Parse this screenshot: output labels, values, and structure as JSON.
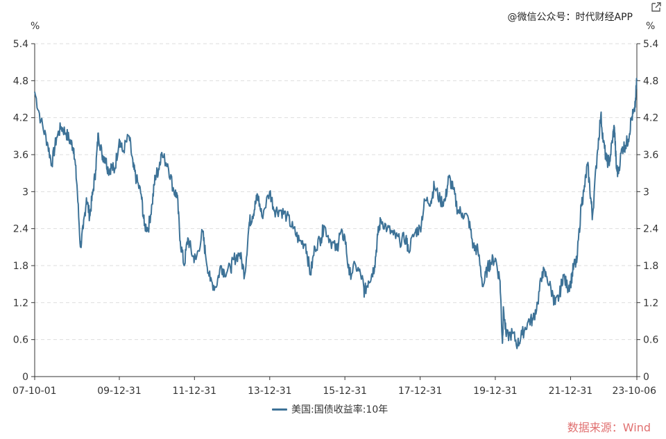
{
  "watermark": "@微信公众号：时代财经APP",
  "source_note": "数据来源：Wind",
  "colors": {
    "line": "#3d7297",
    "grid": "#dddddd",
    "axis": "#333333",
    "source": "#e07070"
  },
  "chart_data": {
    "type": "line",
    "title": "",
    "unit_left": "%",
    "unit_right": "%",
    "ylim": [
      0,
      5.4
    ],
    "yticks": [
      "0",
      "0.6",
      "1.2",
      "1.8",
      "2.4",
      "3",
      "3.6",
      "4.2",
      "4.8",
      "5.4"
    ],
    "xlim": [
      "2007-10-01",
      "2023-10-06"
    ],
    "xticks": [
      {
        "date": "2007-10-01",
        "label": "07-10-01"
      },
      {
        "date": "2009-12-31",
        "label": "09-12-31"
      },
      {
        "date": "2011-12-31",
        "label": "11-12-31"
      },
      {
        "date": "2013-12-31",
        "label": "13-12-31"
      },
      {
        "date": "2015-12-31",
        "label": "15-12-31"
      },
      {
        "date": "2017-12-31",
        "label": "17-12-31"
      },
      {
        "date": "2019-12-31",
        "label": "19-12-31"
      },
      {
        "date": "2021-12-31",
        "label": "21-12-31"
      },
      {
        "date": "2023-10-06",
        "label": "23-10-06"
      }
    ],
    "grid": true,
    "legend_position": "bottom-center",
    "series": [
      {
        "name": "美国:国债收益率:10年",
        "color": "#3d7297",
        "x": [
          "2007-10-01",
          "2007-12-01",
          "2008-02-01",
          "2008-03-15",
          "2008-05-01",
          "2008-06-15",
          "2008-08-01",
          "2008-09-15",
          "2008-10-15",
          "2008-11-15",
          "2008-12-18",
          "2009-01-15",
          "2009-02-15",
          "2009-03-18",
          "2009-04-15",
          "2009-05-15",
          "2009-06-10",
          "2009-07-15",
          "2009-08-15",
          "2009-09-15",
          "2009-10-15",
          "2009-11-15",
          "2009-12-31",
          "2010-02-01",
          "2010-04-05",
          "2010-05-15",
          "2010-06-15",
          "2010-08-01",
          "2010-08-31",
          "2010-10-08",
          "2010-11-15",
          "2010-12-15",
          "2011-01-15",
          "2011-02-08",
          "2011-04-15",
          "2011-06-15",
          "2011-07-15",
          "2011-08-15",
          "2011-09-22",
          "2011-10-27",
          "2011-12-15",
          "2012-01-15",
          "2012-03-19",
          "2012-04-15",
          "2012-06-01",
          "2012-07-24",
          "2012-09-14",
          "2012-10-15",
          "2012-12-15",
          "2013-01-15",
          "2013-03-15",
          "2013-05-02",
          "2013-06-15",
          "2013-07-15",
          "2013-08-15",
          "2013-09-05",
          "2013-10-15",
          "2013-12-31",
          "2014-02-15",
          "2014-04-15",
          "2014-06-15",
          "2014-08-15",
          "2014-10-15",
          "2014-12-15",
          "2015-01-30",
          "2015-03-15",
          "2015-05-15",
          "2015-06-10",
          "2015-08-15",
          "2015-10-15",
          "2015-11-10",
          "2015-12-31",
          "2016-02-11",
          "2016-04-15",
          "2016-06-15",
          "2016-07-08",
          "2016-08-15",
          "2016-09-15",
          "2016-10-15",
          "2016-11-15",
          "2016-12-15",
          "2017-02-15",
          "2017-04-15",
          "2017-06-15",
          "2017-08-15",
          "2017-09-07",
          "2017-11-15",
          "2017-12-31",
          "2018-02-15",
          "2018-04-15",
          "2018-05-17",
          "2018-07-15",
          "2018-08-30",
          "2018-10-05",
          "2018-11-15",
          "2018-12-31",
          "2019-02-15",
          "2019-04-15",
          "2019-06-01",
          "2019-07-15",
          "2019-09-03",
          "2019-10-15",
          "2019-11-15",
          "2019-12-31",
          "2020-02-15",
          "2020-03-09",
          "2020-03-20",
          "2020-04-15",
          "2020-06-15",
          "2020-08-04",
          "2020-09-15",
          "2020-11-15",
          "2020-12-31",
          "2021-02-15",
          "2021-03-31",
          "2021-05-15",
          "2021-07-15",
          "2021-08-04",
          "2021-09-15",
          "2021-10-20",
          "2021-11-30",
          "2021-12-31",
          "2022-01-31",
          "2022-03-01",
          "2022-04-15",
          "2022-05-10",
          "2022-06-14",
          "2022-07-15",
          "2022-08-01",
          "2022-09-15",
          "2022-10-21",
          "2022-11-15",
          "2022-12-15",
          "2023-01-15",
          "2023-02-15",
          "2023-03-02",
          "2023-03-20",
          "2023-04-06",
          "2023-05-15",
          "2023-06-15",
          "2023-07-15",
          "2023-08-15",
          "2023-09-15",
          "2023-10-06"
        ],
        "values": [
          4.62,
          4.15,
          3.8,
          3.45,
          3.88,
          4.05,
          3.95,
          3.8,
          3.7,
          3.1,
          2.1,
          2.4,
          2.9,
          2.6,
          2.95,
          3.35,
          3.95,
          3.6,
          3.55,
          3.35,
          3.4,
          3.35,
          3.85,
          3.65,
          3.9,
          3.4,
          3.2,
          2.95,
          2.45,
          2.4,
          2.8,
          3.25,
          3.35,
          3.6,
          3.45,
          3.0,
          2.95,
          2.2,
          1.8,
          2.25,
          1.95,
          1.9,
          2.35,
          2.0,
          1.55,
          1.45,
          1.8,
          1.7,
          1.75,
          1.9,
          2.0,
          1.65,
          2.5,
          2.6,
          2.8,
          2.95,
          2.6,
          3.0,
          2.7,
          2.7,
          2.6,
          2.4,
          2.2,
          2.15,
          1.65,
          2.1,
          2.25,
          2.45,
          2.2,
          2.05,
          2.3,
          2.27,
          1.65,
          1.8,
          1.6,
          1.36,
          1.55,
          1.65,
          1.8,
          2.3,
          2.55,
          2.4,
          2.3,
          2.2,
          2.25,
          2.05,
          2.35,
          2.4,
          2.85,
          2.85,
          3.1,
          2.85,
          2.85,
          3.23,
          3.05,
          2.7,
          2.65,
          2.55,
          2.1,
          2.05,
          1.46,
          1.75,
          1.85,
          1.92,
          1.55,
          0.54,
          1.1,
          0.65,
          0.7,
          0.52,
          0.68,
          0.9,
          0.92,
          1.2,
          1.7,
          1.62,
          1.3,
          1.17,
          1.32,
          1.65,
          1.45,
          1.51,
          1.8,
          1.85,
          2.8,
          3.0,
          3.45,
          2.9,
          2.6,
          3.6,
          4.25,
          3.8,
          3.5,
          3.5,
          3.9,
          4.05,
          3.4,
          3.3,
          3.7,
          3.75,
          3.85,
          4.2,
          4.3,
          4.8
        ]
      }
    ]
  }
}
